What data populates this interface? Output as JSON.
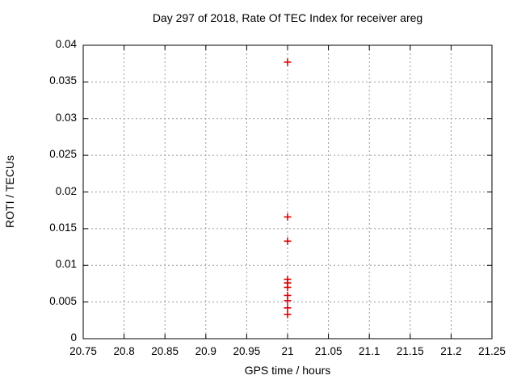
{
  "chart_data": {
    "type": "scatter",
    "title": "Day 297 of 2018, Rate Of TEC Index for receiver areg",
    "xlabel": "GPS time / hours",
    "ylabel": "ROTI / TECUs",
    "xlim": [
      20.75,
      21.25
    ],
    "ylim": [
      0,
      0.04
    ],
    "xticks": [
      20.75,
      20.8,
      20.85,
      20.9,
      20.95,
      21,
      21.05,
      21.1,
      21.15,
      21.2,
      21.25
    ],
    "xtick_labels": [
      "20.75",
      "20.8",
      "20.85",
      "20.9",
      "20.95",
      "21",
      "21.05",
      "21.1",
      "21.15",
      "21.2",
      "21.25"
    ],
    "yticks": [
      0,
      0.005,
      0.01,
      0.015,
      0.02,
      0.025,
      0.03,
      0.035,
      0.04
    ],
    "ytick_labels": [
      "0",
      "0.005",
      "0.01",
      "0.015",
      "0.02",
      "0.025",
      "0.03",
      "0.035",
      "0.04"
    ],
    "grid": true,
    "legend": "none",
    "marker": "plus",
    "series": [
      {
        "name": "ROTI",
        "x": [
          21,
          21,
          21,
          21,
          21,
          21,
          21,
          21,
          21,
          21
        ],
        "y": [
          0.0377,
          0.0166,
          0.0133,
          0.0081,
          0.0076,
          0.007,
          0.0059,
          0.0052,
          0.0042,
          0.0033
        ]
      }
    ]
  },
  "colors": {
    "marker": "#dd0000",
    "grid": "#9a9a9a",
    "frame": "#000000",
    "text": "#000000",
    "background": "#ffffff"
  }
}
